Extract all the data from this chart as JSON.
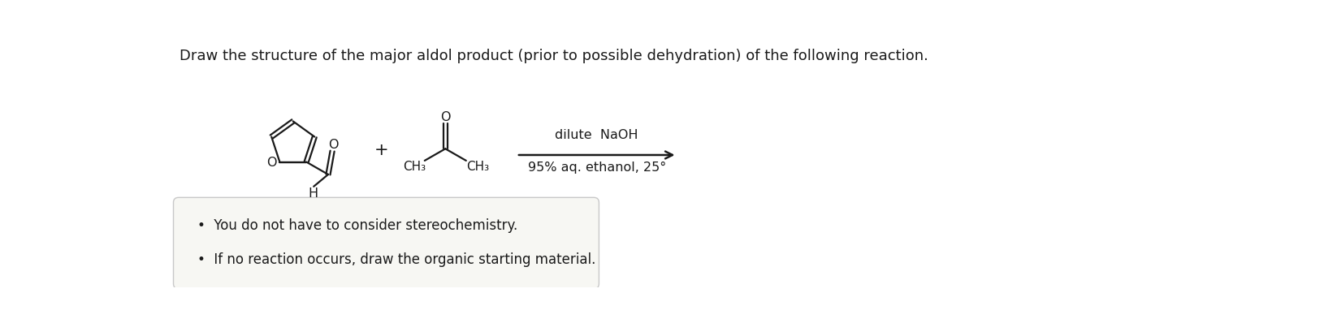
{
  "title": "Draw the structure of the major aldol product (prior to possible dehydration) of the following reaction.",
  "title_fontsize": 13.0,
  "title_color": "#1a1a1a",
  "bg_color": "#ffffff",
  "structure_color": "#1a1a1a",
  "plus_sign": "+",
  "condition_line1": "dilute  NaOH",
  "condition_line2": "95% aq. ethanol, 25°",
  "condition_fontsize": 11.5,
  "bullet1": "You do not have to consider stereochemistry.",
  "bullet2": "If no reaction occurs, draw the organic starting material.",
  "bullet_fontsize": 12,
  "box_facecolor": "#f7f7f3",
  "box_edgecolor": "#c8c8c8",
  "arrow_color": "#1a1a1a",
  "lw": 1.6
}
